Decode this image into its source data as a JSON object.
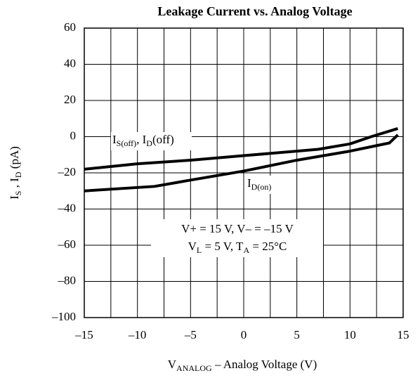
{
  "chart_data": {
    "type": "line",
    "title": "Leakage Current vs. Analog Voltage",
    "xlabel_runs": [
      {
        "text": "V"
      },
      {
        "text": "ANALOG",
        "sub": true
      },
      {
        "text": " – Analog Voltage (V)"
      }
    ],
    "ylabel_runs": [
      {
        "text": "I"
      },
      {
        "text": "S",
        "sub": true
      },
      {
        "text": " , I"
      },
      {
        "text": "D",
        "sub": true
      },
      {
        "text": " (pA)"
      }
    ],
    "xlim": [
      -15,
      15
    ],
    "xticks": [
      {
        "value": -15,
        "label": "–15"
      },
      {
        "value": -10,
        "label": "–10"
      },
      {
        "value": -5,
        "label": "–5"
      },
      0,
      5,
      10,
      15
    ],
    "x_minor_ticks": [
      -12.5,
      -7.5,
      -2.5,
      2.5,
      7.5,
      12.5
    ],
    "ylim": [
      -100,
      60
    ],
    "yticks": [
      {
        "value": -100,
        "label": "–100"
      },
      {
        "value": -80,
        "label": "–80"
      },
      {
        "value": -60,
        "label": "–60"
      },
      {
        "value": -40,
        "label": "–40"
      },
      {
        "value": -20,
        "label": "–20"
      },
      0,
      20,
      40,
      60
    ],
    "grid": true,
    "series": [
      {
        "color": "#000000",
        "label_runs": [
          {
            "text": "I"
          },
          {
            "text": "S(off)",
            "sub": true
          },
          {
            "text": ", I"
          },
          {
            "text": "D",
            "sub": true
          },
          {
            "text": "(off)"
          }
        ],
        "x": [
          -15,
          -10,
          -5,
          0,
          5,
          7,
          10,
          12,
          14.5
        ],
        "values": [
          -18,
          -15,
          -13,
          -10.5,
          -8,
          -7,
          -4,
          0,
          4.5
        ]
      },
      {
        "color": "#000000",
        "label_runs": [
          {
            "text": "I"
          },
          {
            "text": "D(on)",
            "sub": true
          }
        ],
        "x": [
          -15,
          -8.4,
          -5,
          0,
          5,
          10,
          13.7,
          14.5
        ],
        "values": [
          -30,
          -27.5,
          -24,
          -19,
          -13,
          -8,
          -3.5,
          1
        ]
      }
    ],
    "conditions": [
      [
        {
          "text": "V+ = 15 V, V– = –15 V"
        }
      ],
      [
        {
          "text": "V"
        },
        {
          "text": "L",
          "sub": true
        },
        {
          "text": " = 5 V, T"
        },
        {
          "text": "A",
          "sub": true
        },
        {
          "text": " = 25°C"
        }
      ]
    ]
  }
}
